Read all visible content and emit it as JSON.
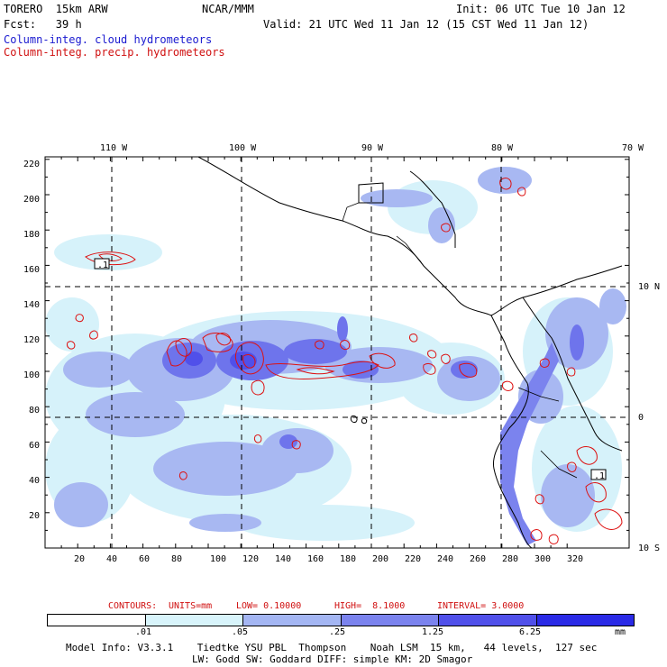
{
  "header": {
    "model": "TORERO  15km ARW",
    "org": "NCAR/MMM",
    "init": "Init: 06 UTC Tue 10 Jan 12",
    "fcst": "Fcst:   39 h",
    "valid": "Valid: 21 UTC Wed 11 Jan 12 (15 CST Wed 11 Jan 12)",
    "line_cloud": "Column-integ. cloud hydrometeors",
    "line_precip": "Column-integ. precip. hydrometeors"
  },
  "axes": {
    "top_lon": [
      "110 W",
      "100 W",
      "90 W",
      "80 W",
      "70 W"
    ],
    "right_lat": [
      "10 N",
      "0",
      "10 S"
    ],
    "left_y": [
      "220",
      "200",
      "180",
      "160",
      "140",
      "120",
      "100",
      "80",
      "60",
      "40",
      "20"
    ],
    "bottom_x": [
      "20",
      "40",
      "60",
      "80",
      "100",
      "120",
      "140",
      "160",
      "180",
      "200",
      "220",
      "240",
      "260",
      "280",
      "300",
      "320"
    ]
  },
  "contour_labels": [
    ".1",
    ".1"
  ],
  "contours_info": {
    "label": "CONTOURS:",
    "units": "UNITS=mm",
    "low": "LOW= 0.10000",
    "high": "HIGH=  8.1000",
    "interval": "INTERVAL= 3.0000"
  },
  "colorbar": {
    "ticks": [
      ".01",
      ".05",
      ".25",
      "1.25",
      "6.25"
    ],
    "unit": "mm",
    "colors": [
      "#ffffff",
      "#d8f4fb",
      "#a4b6f3",
      "#7b83ee",
      "#5050ea",
      "#2a2ae6"
    ]
  },
  "footer": {
    "line1": "Model Info: V3.3.1    Tiedtke YSU PBL  Thompson    Noah LSM  15 km,   44 levels,  127 sec",
    "line2": "LW: Godd SW: Goddard DIFF: simple KM: 2D Smagor"
  },
  "colors": {
    "cloud_light": "#d6f2fa",
    "cloud_mid": "#a8b8f2",
    "cloud_dark": "#6e74ec",
    "precip": "#dd1111"
  }
}
